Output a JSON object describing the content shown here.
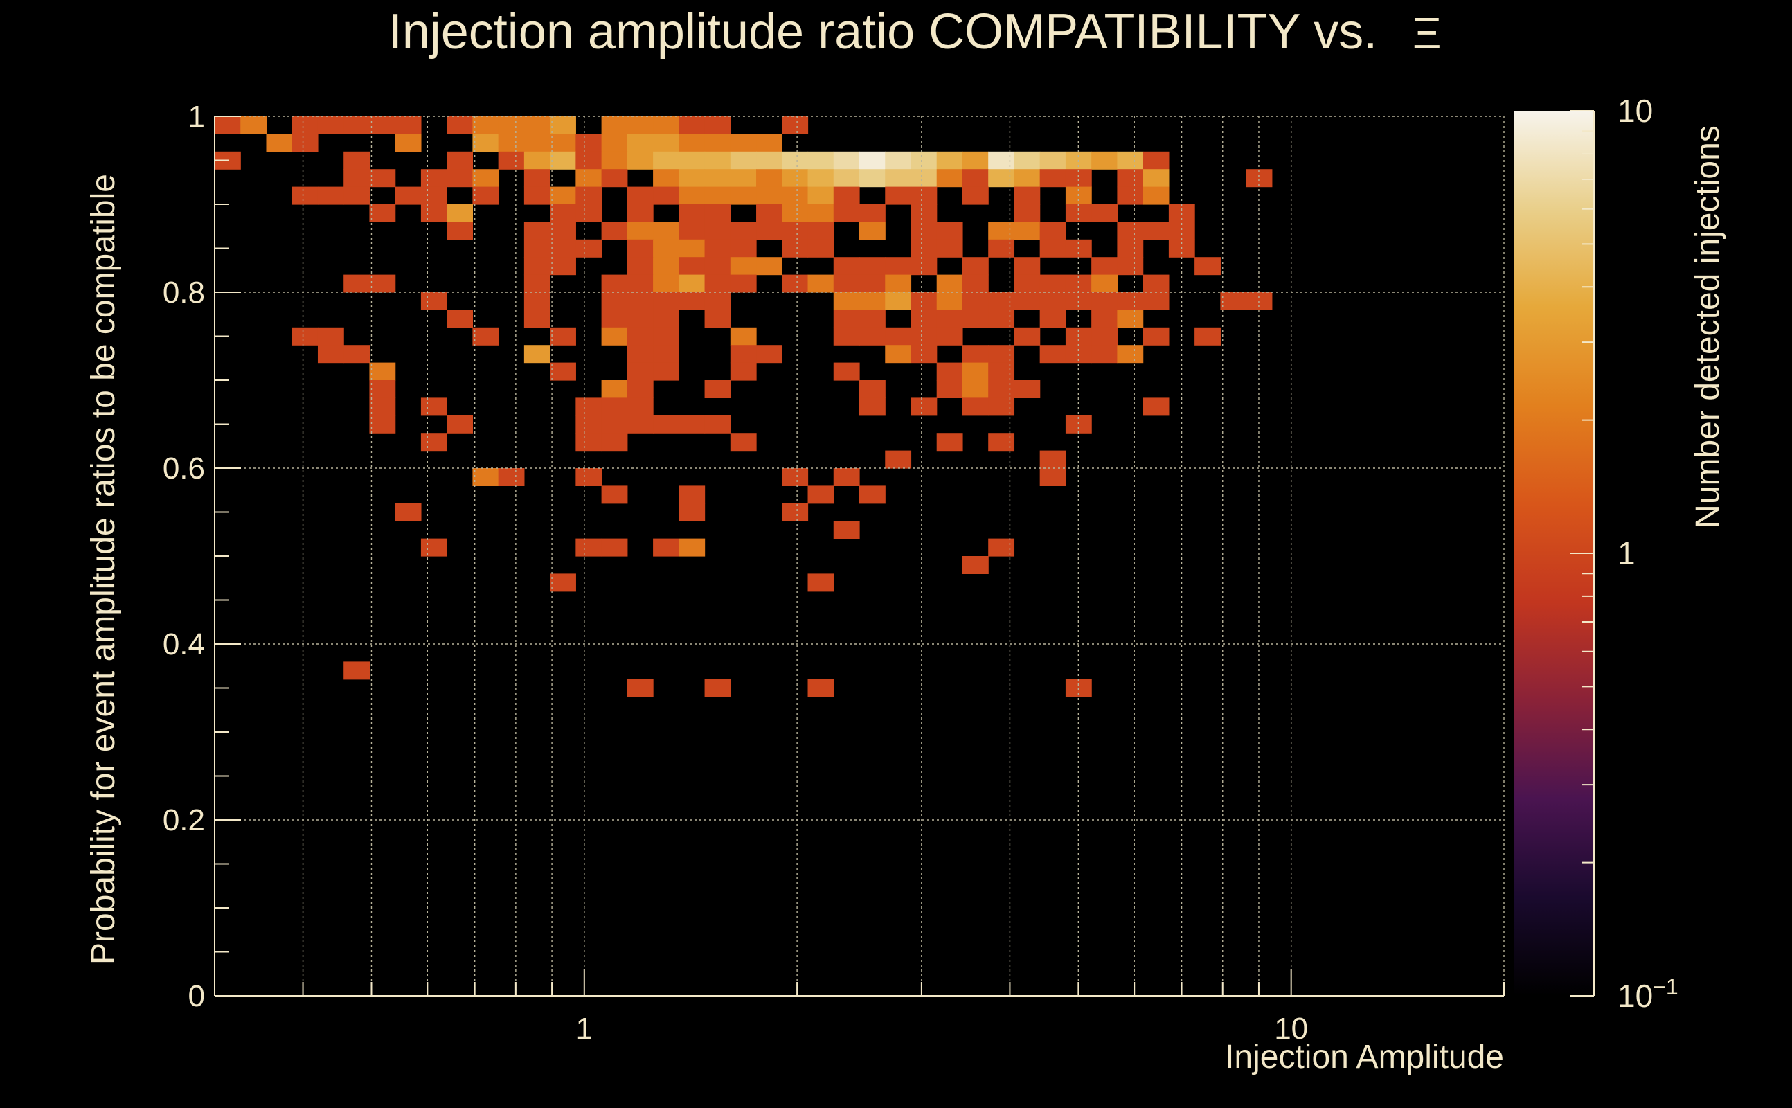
{
  "chart_data": {
    "type": "heatmap",
    "title": "Injection amplitude ratio COMPATIBILITY vs.",
    "title_symbol": "Ξ",
    "xlabel": "Injection Amplitude",
    "ylabel": "Probability for event amplitude ratios to be compatible",
    "zlabel": "Number detected injections",
    "x_scale": "log",
    "x_range": [
      0.3,
      20
    ],
    "y_range": [
      0,
      1
    ],
    "z_scale": "log",
    "z_range": [
      0.1,
      10
    ],
    "x_ticks": [
      {
        "value": 1,
        "label": "1"
      },
      {
        "value": 10,
        "label": "10"
      }
    ],
    "y_ticks": [
      {
        "value": 0,
        "label": "0"
      },
      {
        "value": 0.2,
        "label": "0.2"
      },
      {
        "value": 0.4,
        "label": "0.4"
      },
      {
        "value": 0.6,
        "label": "0.6"
      },
      {
        "value": 0.8,
        "label": "0.8"
      },
      {
        "value": 1,
        "label": "1"
      }
    ],
    "z_ticks": [
      {
        "value": 0.1,
        "label": "10",
        "sup": "−1"
      },
      {
        "value": 1,
        "label": "1",
        "sup": ""
      },
      {
        "value": 10,
        "label": "10",
        "sup": ""
      }
    ],
    "grid": true,
    "colormap": [
      "#000000",
      "#1a0a2e",
      "#4a1450",
      "#8a2238",
      "#c2361f",
      "#d8561a",
      "#e2801e",
      "#e6a83a",
      "#e9cf8a",
      "#f7f4ec"
    ],
    "x_bins": 50,
    "y_bins": 50,
    "cells": [
      [
        49,
        0,
        1
      ],
      [
        49,
        1,
        2
      ],
      [
        49,
        3,
        1
      ],
      [
        49,
        4,
        1
      ],
      [
        49,
        5,
        1
      ],
      [
        49,
        6,
        1
      ],
      [
        49,
        7,
        1
      ],
      [
        49,
        9,
        1
      ],
      [
        49,
        10,
        2
      ],
      [
        49,
        11,
        2
      ],
      [
        49,
        12,
        2
      ],
      [
        49,
        13,
        3
      ],
      [
        49,
        15,
        2
      ],
      [
        49,
        16,
        2
      ],
      [
        49,
        17,
        2
      ],
      [
        49,
        18,
        1
      ],
      [
        49,
        19,
        1
      ],
      [
        49,
        22,
        1
      ],
      [
        48,
        2,
        2
      ],
      [
        48,
        3,
        1
      ],
      [
        48,
        7,
        2
      ],
      [
        48,
        10,
        3
      ],
      [
        48,
        11,
        2
      ],
      [
        48,
        12,
        2
      ],
      [
        48,
        13,
        2
      ],
      [
        48,
        14,
        1
      ],
      [
        48,
        15,
        2
      ],
      [
        48,
        16,
        3
      ],
      [
        48,
        17,
        3
      ],
      [
        48,
        18,
        2
      ],
      [
        48,
        19,
        2
      ],
      [
        48,
        20,
        2
      ],
      [
        48,
        21,
        2
      ],
      [
        47,
        0,
        1
      ],
      [
        47,
        5,
        1
      ],
      [
        47,
        9,
        1
      ],
      [
        47,
        11,
        1
      ],
      [
        47,
        12,
        3
      ],
      [
        47,
        13,
        4
      ],
      [
        47,
        14,
        1
      ],
      [
        47,
        15,
        2
      ],
      [
        47,
        16,
        3
      ],
      [
        47,
        17,
        4
      ],
      [
        47,
        18,
        4
      ],
      [
        47,
        19,
        4
      ],
      [
        47,
        20,
        5
      ],
      [
        47,
        21,
        5
      ],
      [
        47,
        22,
        6
      ],
      [
        47,
        23,
        6
      ],
      [
        47,
        24,
        7
      ],
      [
        47,
        25,
        9
      ],
      [
        47,
        26,
        7
      ],
      [
        47,
        27,
        6
      ],
      [
        47,
        28,
        4
      ],
      [
        47,
        29,
        3
      ],
      [
        47,
        30,
        8
      ],
      [
        47,
        31,
        6
      ],
      [
        47,
        32,
        5
      ],
      [
        47,
        33,
        4
      ],
      [
        47,
        34,
        3
      ],
      [
        47,
        35,
        4
      ],
      [
        47,
        36,
        1
      ],
      [
        46,
        5,
        1
      ],
      [
        46,
        6,
        1
      ],
      [
        46,
        8,
        1
      ],
      [
        46,
        9,
        1
      ],
      [
        46,
        10,
        2
      ],
      [
        46,
        12,
        1
      ],
      [
        46,
        14,
        2
      ],
      [
        46,
        15,
        1
      ],
      [
        46,
        17,
        2
      ],
      [
        46,
        18,
        3
      ],
      [
        46,
        19,
        3
      ],
      [
        46,
        20,
        3
      ],
      [
        46,
        21,
        2
      ],
      [
        46,
        22,
        3
      ],
      [
        46,
        23,
        4
      ],
      [
        46,
        24,
        5
      ],
      [
        46,
        25,
        6
      ],
      [
        46,
        26,
        5
      ],
      [
        46,
        27,
        5
      ],
      [
        46,
        28,
        2
      ],
      [
        46,
        29,
        1
      ],
      [
        46,
        30,
        4
      ],
      [
        46,
        31,
        3
      ],
      [
        46,
        32,
        1
      ],
      [
        46,
        33,
        1
      ],
      [
        46,
        35,
        1
      ],
      [
        46,
        36,
        3
      ],
      [
        46,
        40,
        1
      ],
      [
        45,
        3,
        1
      ],
      [
        45,
        4,
        1
      ],
      [
        45,
        5,
        1
      ],
      [
        45,
        7,
        1
      ],
      [
        45,
        8,
        1
      ],
      [
        45,
        10,
        1
      ],
      [
        45,
        12,
        1
      ],
      [
        45,
        13,
        2
      ],
      [
        45,
        14,
        1
      ],
      [
        45,
        16,
        1
      ],
      [
        45,
        17,
        1
      ],
      [
        45,
        18,
        2
      ],
      [
        45,
        19,
        2
      ],
      [
        45,
        20,
        2
      ],
      [
        45,
        21,
        2
      ],
      [
        45,
        22,
        2
      ],
      [
        45,
        23,
        3
      ],
      [
        45,
        24,
        1
      ],
      [
        45,
        26,
        1
      ],
      [
        45,
        27,
        1
      ],
      [
        45,
        29,
        1
      ],
      [
        45,
        31,
        1
      ],
      [
        45,
        33,
        2
      ],
      [
        45,
        35,
        1
      ],
      [
        45,
        36,
        2
      ],
      [
        44,
        6,
        1
      ],
      [
        44,
        8,
        1
      ],
      [
        44,
        9,
        3
      ],
      [
        44,
        13,
        1
      ],
      [
        44,
        14,
        1
      ],
      [
        44,
        16,
        1
      ],
      [
        44,
        18,
        1
      ],
      [
        44,
        19,
        1
      ],
      [
        44,
        21,
        1
      ],
      [
        44,
        22,
        2
      ],
      [
        44,
        23,
        2
      ],
      [
        44,
        24,
        1
      ],
      [
        44,
        25,
        1
      ],
      [
        44,
        27,
        1
      ],
      [
        44,
        31,
        1
      ],
      [
        44,
        33,
        1
      ],
      [
        44,
        34,
        1
      ],
      [
        44,
        37,
        1
      ],
      [
        43,
        9,
        1
      ],
      [
        43,
        12,
        1
      ],
      [
        43,
        13,
        1
      ],
      [
        43,
        15,
        1
      ],
      [
        43,
        16,
        2
      ],
      [
        43,
        17,
        2
      ],
      [
        43,
        18,
        1
      ],
      [
        43,
        19,
        1
      ],
      [
        43,
        20,
        1
      ],
      [
        43,
        21,
        1
      ],
      [
        43,
        22,
        1
      ],
      [
        43,
        23,
        1
      ],
      [
        43,
        25,
        2
      ],
      [
        43,
        27,
        1
      ],
      [
        43,
        28,
        1
      ],
      [
        43,
        30,
        2
      ],
      [
        43,
        31,
        2
      ],
      [
        43,
        32,
        1
      ],
      [
        43,
        35,
        1
      ],
      [
        43,
        36,
        1
      ],
      [
        43,
        37,
        1
      ],
      [
        42,
        12,
        1
      ],
      [
        42,
        13,
        1
      ],
      [
        42,
        14,
        1
      ],
      [
        42,
        16,
        1
      ],
      [
        42,
        17,
        2
      ],
      [
        42,
        18,
        2
      ],
      [
        42,
        19,
        1
      ],
      [
        42,
        20,
        1
      ],
      [
        42,
        22,
        1
      ],
      [
        42,
        23,
        1
      ],
      [
        42,
        27,
        1
      ],
      [
        42,
        28,
        1
      ],
      [
        42,
        30,
        1
      ],
      [
        42,
        32,
        1
      ],
      [
        42,
        33,
        1
      ],
      [
        42,
        35,
        1
      ],
      [
        42,
        37,
        1
      ],
      [
        41,
        12,
        1
      ],
      [
        41,
        13,
        1
      ],
      [
        41,
        16,
        1
      ],
      [
        41,
        17,
        2
      ],
      [
        41,
        18,
        1
      ],
      [
        41,
        19,
        1
      ],
      [
        41,
        20,
        2
      ],
      [
        41,
        21,
        2
      ],
      [
        41,
        24,
        1
      ],
      [
        41,
        25,
        1
      ],
      [
        41,
        26,
        1
      ],
      [
        41,
        27,
        1
      ],
      [
        41,
        29,
        1
      ],
      [
        41,
        31,
        1
      ],
      [
        41,
        34,
        1
      ],
      [
        41,
        35,
        1
      ],
      [
        41,
        38,
        1
      ],
      [
        40,
        5,
        1
      ],
      [
        40,
        6,
        1
      ],
      [
        40,
        12,
        1
      ],
      [
        40,
        15,
        1
      ],
      [
        40,
        16,
        1
      ],
      [
        40,
        17,
        2
      ],
      [
        40,
        18,
        3
      ],
      [
        40,
        19,
        1
      ],
      [
        40,
        20,
        1
      ],
      [
        40,
        22,
        1
      ],
      [
        40,
        23,
        2
      ],
      [
        40,
        24,
        1
      ],
      [
        40,
        25,
        1
      ],
      [
        40,
        26,
        2
      ],
      [
        40,
        28,
        2
      ],
      [
        40,
        29,
        1
      ],
      [
        40,
        31,
        1
      ],
      [
        40,
        32,
        1
      ],
      [
        40,
        33,
        1
      ],
      [
        40,
        34,
        2
      ],
      [
        40,
        36,
        1
      ],
      [
        39,
        8,
        1
      ],
      [
        39,
        12,
        1
      ],
      [
        39,
        15,
        1
      ],
      [
        39,
        16,
        1
      ],
      [
        39,
        17,
        1
      ],
      [
        39,
        18,
        1
      ],
      [
        39,
        19,
        1
      ],
      [
        39,
        24,
        2
      ],
      [
        39,
        25,
        2
      ],
      [
        39,
        26,
        3
      ],
      [
        39,
        27,
        1
      ],
      [
        39,
        28,
        2
      ],
      [
        39,
        29,
        1
      ],
      [
        39,
        30,
        1
      ],
      [
        39,
        31,
        1
      ],
      [
        39,
        32,
        1
      ],
      [
        39,
        33,
        1
      ],
      [
        39,
        34,
        1
      ],
      [
        39,
        35,
        1
      ],
      [
        39,
        36,
        1
      ],
      [
        39,
        39,
        1
      ],
      [
        39,
        40,
        1
      ],
      [
        38,
        9,
        1
      ],
      [
        38,
        12,
        1
      ],
      [
        38,
        15,
        1
      ],
      [
        38,
        16,
        1
      ],
      [
        38,
        17,
        1
      ],
      [
        38,
        19,
        1
      ],
      [
        38,
        24,
        1
      ],
      [
        38,
        25,
        1
      ],
      [
        38,
        27,
        1
      ],
      [
        38,
        28,
        1
      ],
      [
        38,
        29,
        1
      ],
      [
        38,
        30,
        1
      ],
      [
        38,
        32,
        1
      ],
      [
        38,
        34,
        1
      ],
      [
        38,
        35,
        2
      ],
      [
        37,
        3,
        1
      ],
      [
        37,
        4,
        1
      ],
      [
        37,
        10,
        1
      ],
      [
        37,
        13,
        1
      ],
      [
        37,
        15,
        2
      ],
      [
        37,
        16,
        1
      ],
      [
        37,
        17,
        1
      ],
      [
        37,
        20,
        2
      ],
      [
        37,
        24,
        1
      ],
      [
        37,
        25,
        1
      ],
      [
        37,
        26,
        1
      ],
      [
        37,
        27,
        1
      ],
      [
        37,
        28,
        1
      ],
      [
        37,
        31,
        1
      ],
      [
        37,
        33,
        1
      ],
      [
        37,
        34,
        1
      ],
      [
        37,
        36,
        1
      ],
      [
        37,
        38,
        1
      ],
      [
        36,
        4,
        1
      ],
      [
        36,
        5,
        1
      ],
      [
        36,
        12,
        3
      ],
      [
        36,
        16,
        1
      ],
      [
        36,
        17,
        1
      ],
      [
        36,
        20,
        1
      ],
      [
        36,
        21,
        1
      ],
      [
        36,
        26,
        2
      ],
      [
        36,
        27,
        1
      ],
      [
        36,
        29,
        1
      ],
      [
        36,
        30,
        1
      ],
      [
        36,
        32,
        1
      ],
      [
        36,
        33,
        1
      ],
      [
        36,
        34,
        1
      ],
      [
        36,
        35,
        2
      ],
      [
        35,
        6,
        2
      ],
      [
        35,
        13,
        1
      ],
      [
        35,
        16,
        1
      ],
      [
        35,
        17,
        1
      ],
      [
        35,
        20,
        1
      ],
      [
        35,
        24,
        1
      ],
      [
        35,
        28,
        1
      ],
      [
        35,
        29,
        2
      ],
      [
        35,
        30,
        1
      ],
      [
        34,
        6,
        1
      ],
      [
        34,
        15,
        2
      ],
      [
        34,
        16,
        1
      ],
      [
        34,
        19,
        1
      ],
      [
        34,
        25,
        1
      ],
      [
        34,
        28,
        1
      ],
      [
        34,
        29,
        2
      ],
      [
        34,
        30,
        1
      ],
      [
        34,
        31,
        1
      ],
      [
        33,
        6,
        1
      ],
      [
        33,
        8,
        1
      ],
      [
        33,
        14,
        1
      ],
      [
        33,
        15,
        1
      ],
      [
        33,
        16,
        1
      ],
      [
        33,
        25,
        1
      ],
      [
        33,
        27,
        1
      ],
      [
        33,
        29,
        1
      ],
      [
        33,
        30,
        1
      ],
      [
        33,
        36,
        1
      ],
      [
        32,
        6,
        1
      ],
      [
        32,
        9,
        1
      ],
      [
        32,
        14,
        1
      ],
      [
        32,
        15,
        1
      ],
      [
        32,
        16,
        1
      ],
      [
        32,
        17,
        1
      ],
      [
        32,
        18,
        1
      ],
      [
        32,
        19,
        1
      ],
      [
        32,
        33,
        1
      ],
      [
        31,
        8,
        1
      ],
      [
        31,
        14,
        1
      ],
      [
        31,
        15,
        1
      ],
      [
        31,
        20,
        1
      ],
      [
        31,
        28,
        1
      ],
      [
        31,
        30,
        1
      ],
      [
        30,
        26,
        1
      ],
      [
        30,
        32,
        1
      ],
      [
        29,
        10,
        2
      ],
      [
        29,
        11,
        1
      ],
      [
        29,
        14,
        1
      ],
      [
        29,
        22,
        1
      ],
      [
        29,
        24,
        1
      ],
      [
        29,
        32,
        1
      ],
      [
        28,
        15,
        1
      ],
      [
        28,
        18,
        1
      ],
      [
        28,
        23,
        1
      ],
      [
        28,
        25,
        1
      ],
      [
        27,
        7,
        1
      ],
      [
        27,
        18,
        1
      ],
      [
        27,
        22,
        1
      ],
      [
        26,
        24,
        1
      ],
      [
        25,
        8,
        1
      ],
      [
        25,
        14,
        1
      ],
      [
        25,
        15,
        1
      ],
      [
        25,
        17,
        1
      ],
      [
        25,
        18,
        2
      ],
      [
        25,
        30,
        1
      ],
      [
        24,
        29,
        1
      ],
      [
        23,
        13,
        1
      ],
      [
        23,
        23,
        1
      ],
      [
        18,
        5,
        1
      ],
      [
        17,
        16,
        1
      ],
      [
        17,
        19,
        1
      ],
      [
        17,
        23,
        1
      ],
      [
        17,
        33,
        1
      ]
    ]
  }
}
